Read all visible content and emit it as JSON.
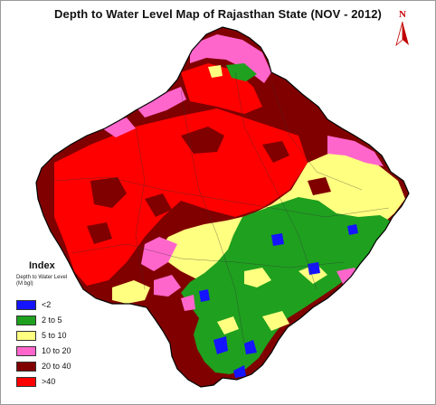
{
  "title": "Depth to Water Level Map of Rajasthan State (NOV - 2012)",
  "north_label": "N",
  "legend": {
    "title": "Index",
    "subtitle": "Depth to Water Level (M bgl)",
    "items": [
      {
        "label": "<2",
        "color": "#1414ff"
      },
      {
        "label": "2 to 5",
        "color": "#1fa01f"
      },
      {
        "label": "5 to 10",
        "color": "#ffff80"
      },
      {
        "label": "10 to 20",
        "color": "#ff66cc"
      },
      {
        "label": "20 to 40",
        "color": "#800000"
      },
      {
        "label": ">40",
        "color": "#ff0000"
      }
    ]
  }
}
